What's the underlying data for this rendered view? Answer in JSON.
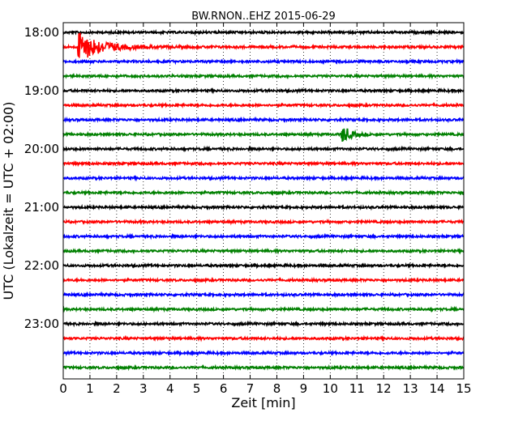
{
  "chart_data": {
    "type": "line",
    "title": "BW.RNON..EHZ 2015-06-29",
    "xlabel": "Zeit  [min]",
    "ylabel": "UTC (Lokalzeit = UTC + 02:00)",
    "xlim": [
      0,
      15
    ],
    "xticks": [
      0,
      1,
      2,
      3,
      4,
      5,
      6,
      7,
      8,
      9,
      10,
      11,
      12,
      13,
      14,
      15
    ],
    "x_grid": "dotted",
    "row_start": "18:00",
    "row_interval_min": 15,
    "row_count": 24,
    "row_labels": [
      "18:00",
      "19:00",
      "20:00",
      "21:00",
      "22:00",
      "23:00"
    ],
    "trace_colors": [
      "#000000",
      "#ff0000",
      "#0000ff",
      "#008000"
    ],
    "events": [
      {
        "row": "18:15",
        "minute_start": 0.55,
        "minute_peak": 0.62,
        "duration_min": 3.0,
        "peak_amplitude": "strong"
      },
      {
        "row": "19:45",
        "minute_start": 10.1,
        "minute_peak": 10.5,
        "duration_min": 1.0,
        "peak_amplitude": "moderate"
      }
    ]
  }
}
